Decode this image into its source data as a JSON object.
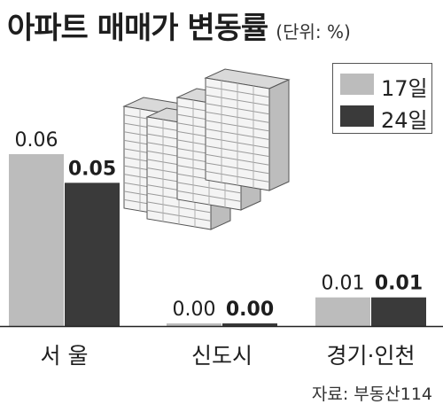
{
  "header": {
    "title": "아파트 매매가 변동률",
    "unit": "(단위: %)"
  },
  "colors": {
    "s17": "#bcbcbc",
    "s24": "#3a3a3a",
    "axis": "#222222"
  },
  "chart_data": {
    "type": "bar",
    "title": "아파트 매매가 변동률",
    "unit": "(단위: %)",
    "categories": [
      "서 울",
      "신도시",
      "경기·인천"
    ],
    "series": [
      {
        "name": "17일",
        "values": [
          0.06,
          0.0,
          0.01
        ]
      },
      {
        "name": "24일",
        "values": [
          0.05,
          0.0,
          0.01
        ]
      }
    ],
    "value_labels": [
      [
        "0.06",
        "0.00",
        "0.01"
      ],
      [
        "0.05",
        "0.00",
        "0.01"
      ]
    ],
    "ylim": [
      0,
      0.06
    ],
    "legend_position": "top-right",
    "grid": false
  },
  "footer": {
    "source": "자료: 부동산114"
  }
}
